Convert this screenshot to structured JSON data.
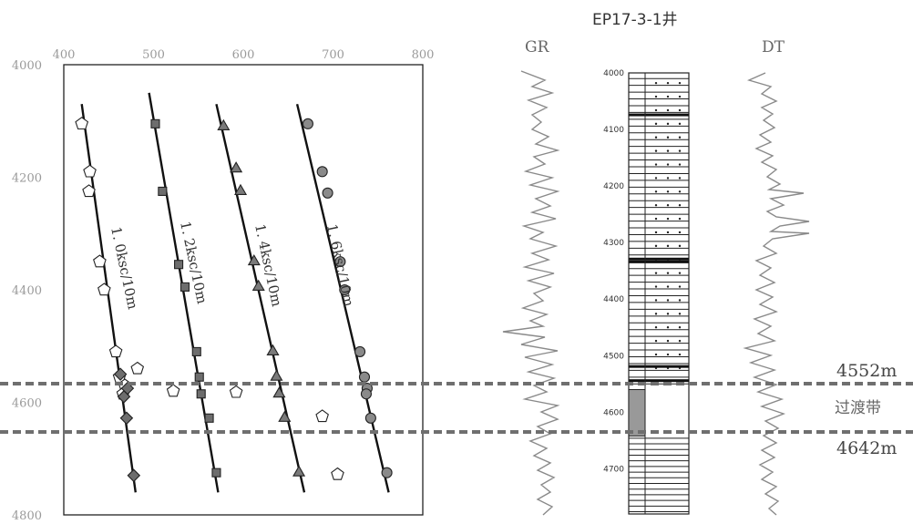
{
  "well_title": "EP17-3-1井",
  "curves": {
    "gr_label": "GR",
    "dt_label": "DT"
  },
  "markers": {
    "top_label": "4552m",
    "zone_label": "过渡带",
    "bottom_label": "4642m"
  },
  "chart_data": {
    "type": "scatter",
    "xlim": [
      400,
      800
    ],
    "ylim": [
      4000,
      4800
    ],
    "x_ticks": [
      "400",
      "500",
      "600",
      "700",
      "800"
    ],
    "y_ticks": [
      "4000",
      "4200",
      "4400",
      "4600",
      "4800"
    ],
    "y_inverted": true,
    "grid": false,
    "series": [
      {
        "name": "1. 0ksc/10m",
        "marker": "pentagon",
        "color": "#ffffff",
        "trend": [
          [
            420,
            4070
          ],
          [
            480,
            4760
          ]
        ],
        "points": [
          [
            420,
            4105
          ],
          [
            429,
            4190
          ],
          [
            428,
            4225
          ],
          [
            440,
            4350
          ],
          [
            445,
            4400
          ],
          [
            458,
            4510
          ],
          [
            462,
            4555
          ],
          [
            468,
            4570
          ],
          [
            466,
            4585
          ]
        ]
      },
      {
        "name": "1. 2ksc/10m",
        "marker": "square",
        "color": "#6d6d6d",
        "trend": [
          [
            495,
            4050
          ],
          [
            572,
            4760
          ]
        ],
        "points": [
          [
            502,
            4105
          ],
          [
            510,
            4225
          ],
          [
            528,
            4355
          ],
          [
            535,
            4395
          ],
          [
            548,
            4510
          ],
          [
            551,
            4555
          ],
          [
            553,
            4585
          ],
          [
            562,
            4628
          ],
          [
            570,
            4725
          ]
        ]
      },
      {
        "name": "1. 4ksc/10m",
        "marker": "triangle",
        "color": "#7a7a7a",
        "trend": [
          [
            570,
            4070
          ],
          [
            668,
            4760
          ]
        ],
        "points": [
          [
            578,
            4110
          ],
          [
            592,
            4185
          ],
          [
            597,
            4225
          ],
          [
            612,
            4350
          ],
          [
            617,
            4395
          ],
          [
            633,
            4510
          ],
          [
            637,
            4555
          ],
          [
            640,
            4585
          ],
          [
            646,
            4628
          ],
          [
            662,
            4725
          ]
        ]
      },
      {
        "name": "1. 6ksc/10m",
        "marker": "circle",
        "color": "#8a8a8a",
        "trend": [
          [
            660,
            4070
          ],
          [
            762,
            4760
          ]
        ],
        "points": [
          [
            672,
            4105
          ],
          [
            688,
            4190
          ],
          [
            694,
            4228
          ],
          [
            708,
            4350
          ],
          [
            713,
            4400
          ],
          [
            730,
            4510
          ],
          [
            735,
            4555
          ],
          [
            738,
            4575
          ],
          [
            737,
            4585
          ],
          [
            742,
            4628
          ],
          [
            760,
            4725
          ]
        ]
      },
      {
        "name": "",
        "marker": "diamond",
        "color": "#6d6d6d",
        "points": [
          [
            463,
            4550
          ],
          [
            471,
            4575
          ],
          [
            467,
            4590
          ],
          [
            470,
            4628
          ],
          [
            478,
            4730
          ]
        ]
      },
      {
        "name": "",
        "marker": "pentagon",
        "color": "#ffffff",
        "points": [
          [
            482,
            4540
          ],
          [
            522,
            4580
          ],
          [
            592,
            4582
          ],
          [
            688,
            4625
          ],
          [
            705,
            4728
          ]
        ]
      }
    ]
  },
  "lith_ticks": [
    "4000",
    "4100",
    "4200",
    "4300",
    "4400",
    "4500",
    "4600",
    "4700"
  ]
}
